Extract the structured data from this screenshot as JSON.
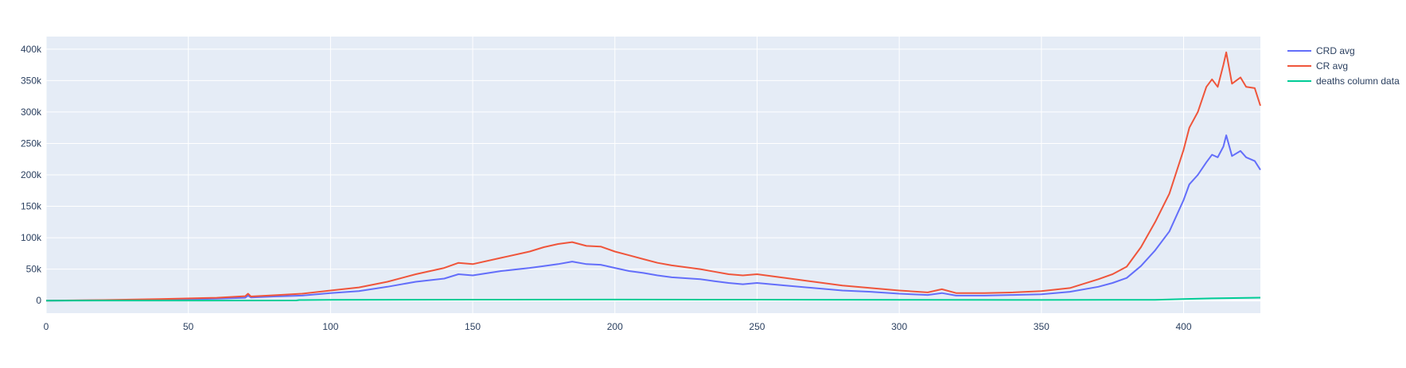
{
  "chart_data": {
    "type": "line",
    "title": "",
    "xlabel": "",
    "ylabel": "",
    "xlim": [
      0,
      427
    ],
    "ylim": [
      -20000,
      420000
    ],
    "x_ticks": [
      0,
      50,
      100,
      150,
      200,
      250,
      300,
      350,
      400
    ],
    "x_tick_labels": [
      "0",
      "50",
      "100",
      "150",
      "200",
      "250",
      "300",
      "350",
      "400"
    ],
    "y_ticks": [
      0,
      50000,
      100000,
      150000,
      200000,
      250000,
      300000,
      350000,
      400000
    ],
    "y_tick_labels": [
      "0",
      "50k",
      "100k",
      "150k",
      "200k",
      "250k",
      "300k",
      "350k",
      "400k"
    ],
    "grid": true,
    "legend_position": "top-right",
    "series": [
      {
        "name": "CRD avg",
        "color": "#636efa",
        "points": [
          [
            0,
            0
          ],
          [
            20,
            500
          ],
          [
            40,
            1500
          ],
          [
            60,
            3000
          ],
          [
            70,
            4500
          ],
          [
            71,
            8000
          ],
          [
            72,
            5000
          ],
          [
            80,
            6500
          ],
          [
            90,
            8000
          ],
          [
            100,
            12000
          ],
          [
            110,
            15000
          ],
          [
            120,
            22000
          ],
          [
            130,
            30000
          ],
          [
            140,
            35000
          ],
          [
            145,
            42000
          ],
          [
            150,
            40000
          ],
          [
            160,
            47000
          ],
          [
            170,
            52000
          ],
          [
            175,
            55000
          ],
          [
            180,
            58000
          ],
          [
            185,
            62000
          ],
          [
            190,
            58000
          ],
          [
            195,
            57000
          ],
          [
            200,
            52000
          ],
          [
            205,
            47000
          ],
          [
            210,
            44000
          ],
          [
            215,
            40000
          ],
          [
            220,
            37000
          ],
          [
            230,
            34000
          ],
          [
            235,
            31000
          ],
          [
            240,
            28000
          ],
          [
            245,
            26000
          ],
          [
            250,
            28000
          ],
          [
            260,
            24000
          ],
          [
            270,
            20000
          ],
          [
            280,
            16000
          ],
          [
            290,
            14000
          ],
          [
            300,
            11000
          ],
          [
            310,
            9000
          ],
          [
            315,
            12000
          ],
          [
            320,
            8000
          ],
          [
            330,
            8000
          ],
          [
            340,
            9000
          ],
          [
            350,
            10000
          ],
          [
            360,
            14000
          ],
          [
            370,
            22000
          ],
          [
            375,
            28000
          ],
          [
            380,
            36000
          ],
          [
            385,
            55000
          ],
          [
            390,
            80000
          ],
          [
            395,
            110000
          ],
          [
            400,
            160000
          ],
          [
            402,
            185000
          ],
          [
            405,
            200000
          ],
          [
            408,
            220000
          ],
          [
            410,
            232000
          ],
          [
            412,
            228000
          ],
          [
            414,
            245000
          ],
          [
            415,
            263000
          ],
          [
            417,
            230000
          ],
          [
            420,
            238000
          ],
          [
            422,
            228000
          ],
          [
            425,
            222000
          ],
          [
            427,
            208000
          ]
        ]
      },
      {
        "name": "CR avg",
        "color": "#ef553b",
        "points": [
          [
            0,
            0
          ],
          [
            20,
            800
          ],
          [
            40,
            2500
          ],
          [
            60,
            4500
          ],
          [
            70,
            7000
          ],
          [
            71,
            11000
          ],
          [
            72,
            6500
          ],
          [
            80,
            8500
          ],
          [
            90,
            11000
          ],
          [
            100,
            16000
          ],
          [
            110,
            21000
          ],
          [
            120,
            30000
          ],
          [
            130,
            42000
          ],
          [
            140,
            52000
          ],
          [
            145,
            60000
          ],
          [
            150,
            58000
          ],
          [
            160,
            68000
          ],
          [
            170,
            78000
          ],
          [
            175,
            85000
          ],
          [
            180,
            90000
          ],
          [
            185,
            93000
          ],
          [
            190,
            87000
          ],
          [
            195,
            86000
          ],
          [
            200,
            78000
          ],
          [
            205,
            72000
          ],
          [
            210,
            66000
          ],
          [
            215,
            60000
          ],
          [
            220,
            56000
          ],
          [
            230,
            50000
          ],
          [
            235,
            46000
          ],
          [
            240,
            42000
          ],
          [
            245,
            40000
          ],
          [
            250,
            42000
          ],
          [
            260,
            36000
          ],
          [
            270,
            30000
          ],
          [
            280,
            24000
          ],
          [
            290,
            20000
          ],
          [
            300,
            16000
          ],
          [
            310,
            13000
          ],
          [
            315,
            18000
          ],
          [
            320,
            12000
          ],
          [
            330,
            12000
          ],
          [
            340,
            13000
          ],
          [
            350,
            15000
          ],
          [
            360,
            20000
          ],
          [
            370,
            34000
          ],
          [
            375,
            42000
          ],
          [
            380,
            54000
          ],
          [
            385,
            85000
          ],
          [
            390,
            125000
          ],
          [
            395,
            170000
          ],
          [
            400,
            240000
          ],
          [
            402,
            275000
          ],
          [
            405,
            300000
          ],
          [
            408,
            340000
          ],
          [
            410,
            352000
          ],
          [
            412,
            340000
          ],
          [
            414,
            375000
          ],
          [
            415,
            395000
          ],
          [
            417,
            345000
          ],
          [
            420,
            355000
          ],
          [
            422,
            340000
          ],
          [
            425,
            338000
          ],
          [
            427,
            310000
          ]
        ]
      },
      {
        "name": "deaths column data",
        "color": "#00cc96",
        "points": [
          [
            0,
            0
          ],
          [
            50,
            50
          ],
          [
            88,
            200
          ],
          [
            89,
            800
          ],
          [
            100,
            1200
          ],
          [
            150,
            1500
          ],
          [
            200,
            1600
          ],
          [
            250,
            1500
          ],
          [
            300,
            1200
          ],
          [
            350,
            1000
          ],
          [
            390,
            1200
          ],
          [
            400,
            2500
          ],
          [
            410,
            3500
          ],
          [
            420,
            4200
          ],
          [
            427,
            4600
          ]
        ]
      }
    ]
  }
}
